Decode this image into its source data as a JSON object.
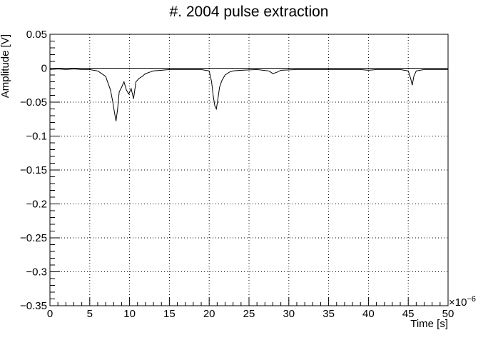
{
  "chart_data": {
    "type": "line",
    "title": "#. 2004 pulse extraction",
    "xlabel": "Time [s]",
    "ylabel": "Amplitude [V]",
    "x_exponent_label": "×10",
    "x_exponent_power": "−6",
    "xlim": [
      0,
      50
    ],
    "ylim": [
      -0.35,
      0.05
    ],
    "grid": true,
    "x_ticks": [
      0,
      5,
      10,
      15,
      20,
      25,
      30,
      35,
      40,
      45,
      50
    ],
    "x_tick_labels": [
      "0",
      "5",
      "10",
      "15",
      "20",
      "25",
      "30",
      "35",
      "40",
      "45",
      "50"
    ],
    "y_ticks": [
      0.05,
      0,
      -0.05,
      -0.1,
      -0.15,
      -0.2,
      -0.25,
      -0.3,
      -0.35
    ],
    "y_tick_labels": [
      "0.05",
      "0",
      "−0.05",
      "−0.1",
      "−0.15",
      "−0.2",
      "−0.25",
      "−0.3",
      "−0.35"
    ],
    "baseline": 0,
    "series": [
      {
        "color": "#000000",
        "x": [
          0,
          1,
          2,
          3,
          4,
          5,
          6,
          6.5,
          7.0,
          7.3,
          7.6,
          7.9,
          8.1,
          8.3,
          8.5,
          8.7,
          9.0,
          9.3,
          9.6,
          9.9,
          10.2,
          10.5,
          10.8,
          11.2,
          11.6,
          12.0,
          12.5,
          13.0,
          14.0,
          15.0,
          17,
          19,
          20.0,
          20.3,
          20.5,
          20.7,
          20.9,
          21.1,
          21.3,
          21.6,
          22.0,
          22.5,
          23.0,
          24.0,
          26,
          27.5,
          28.0,
          28.5,
          29,
          31,
          33,
          35,
          37,
          39,
          40,
          41,
          42,
          43,
          44,
          45.0,
          45.3,
          45.5,
          45.7,
          46.0,
          47,
          48,
          49,
          50
        ],
        "y": [
          -0.002,
          -0.001,
          -0.002,
          -0.001,
          -0.002,
          -0.002,
          -0.004,
          -0.008,
          -0.012,
          -0.022,
          -0.032,
          -0.05,
          -0.065,
          -0.078,
          -0.06,
          -0.035,
          -0.028,
          -0.02,
          -0.032,
          -0.038,
          -0.03,
          -0.045,
          -0.02,
          -0.015,
          -0.012,
          -0.008,
          -0.006,
          -0.004,
          -0.003,
          -0.002,
          -0.002,
          -0.002,
          -0.004,
          -0.02,
          -0.04,
          -0.055,
          -0.06,
          -0.045,
          -0.028,
          -0.018,
          -0.01,
          -0.006,
          -0.004,
          -0.003,
          -0.002,
          -0.004,
          -0.008,
          -0.006,
          -0.003,
          -0.002,
          -0.002,
          -0.002,
          -0.002,
          -0.002,
          -0.003,
          -0.002,
          -0.002,
          -0.002,
          -0.002,
          -0.004,
          -0.015,
          -0.025,
          -0.012,
          -0.004,
          -0.002,
          -0.002,
          -0.002,
          -0.002
        ]
      }
    ]
  }
}
